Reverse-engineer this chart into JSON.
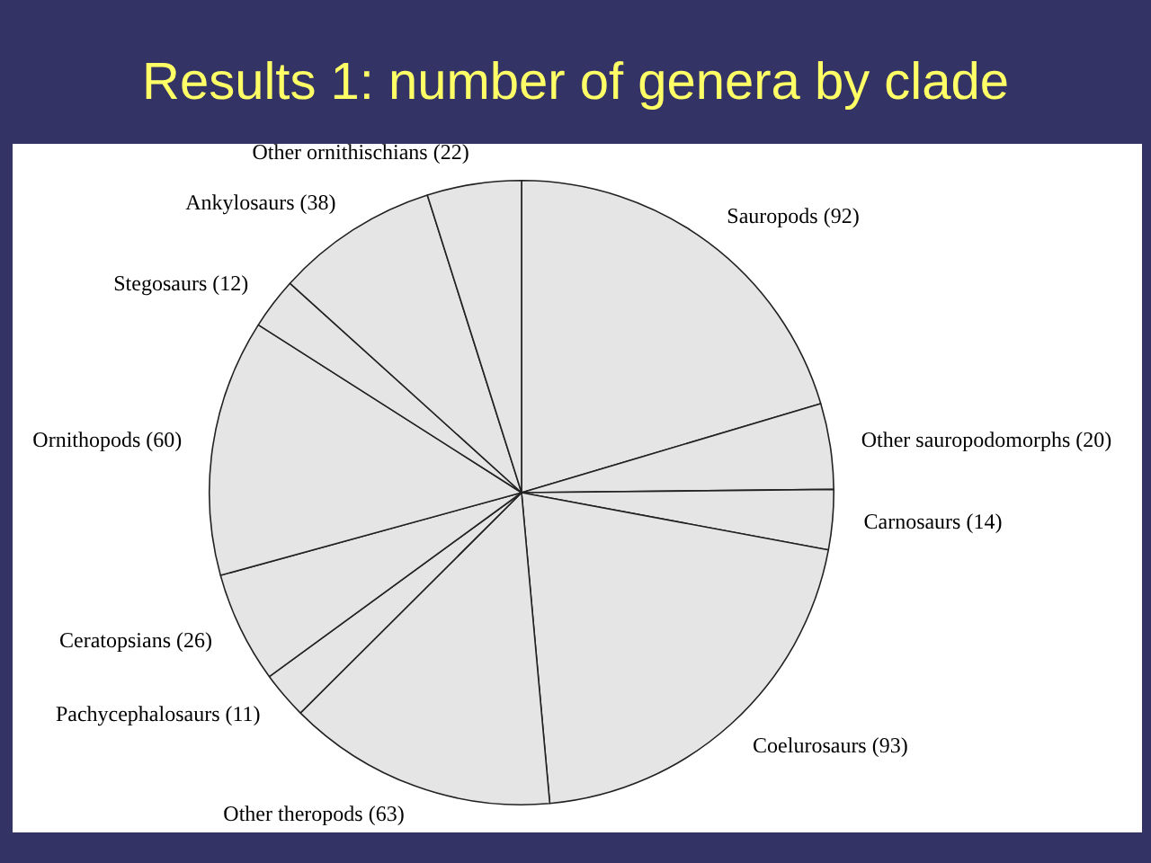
{
  "chart_data": {
    "type": "pie",
    "title": "Results 1: number of genera by clade",
    "categories": [
      "Sauropods (92)",
      "Other sauropodomorphs (20)",
      "Carnosaurs (14)",
      "Coelurosaurs (93)",
      "Other theropods (63)",
      "Pachycephalosaurs (11)",
      "Ceratopsians (26)",
      "Ornithopods (60)",
      "Stegosaurs (12)",
      "Ankylosaurs (38)",
      "Other ornithischians (22)"
    ],
    "values": [
      92,
      20,
      14,
      93,
      63,
      11,
      26,
      60,
      12,
      38,
      22
    ],
    "colors": [
      "#e5e5e5",
      "#e5e5e5",
      "#e5e5e5",
      "#e5e5e5",
      "#e5e5e5",
      "#e5e5e5",
      "#e5e5e5",
      "#e5e5e5",
      "#e5e5e5",
      "#e5e5e5",
      "#e5e5e5"
    ]
  }
}
